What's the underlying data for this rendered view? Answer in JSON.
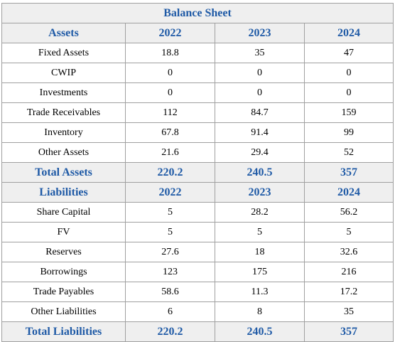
{
  "title": "Balance Sheet",
  "years": [
    "2022",
    "2023",
    "2024"
  ],
  "assets": {
    "header": "Assets",
    "rows": [
      {
        "label": "Fixed Assets",
        "values": [
          "18.8",
          "35",
          "47"
        ]
      },
      {
        "label": "CWIP",
        "values": [
          "0",
          "0",
          "0"
        ]
      },
      {
        "label": "Investments",
        "values": [
          "0",
          "0",
          "0"
        ]
      },
      {
        "label": "Trade Receivables",
        "values": [
          "112",
          "84.7",
          "159"
        ]
      },
      {
        "label": "Inventory",
        "values": [
          "67.8",
          "91.4",
          "99"
        ]
      },
      {
        "label": "Other Assets",
        "values": [
          "21.6",
          "29.4",
          "52"
        ]
      }
    ],
    "total": {
      "label": "Total Assets",
      "values": [
        "220.2",
        "240.5",
        "357"
      ]
    }
  },
  "liabilities": {
    "header": "Liabilities",
    "rows": [
      {
        "label": "Share Capital",
        "values": [
          "5",
          "28.2",
          "56.2"
        ]
      },
      {
        "label": "FV",
        "values": [
          "5",
          "5",
          "5"
        ]
      },
      {
        "label": "Reserves",
        "values": [
          "27.6",
          "18",
          "32.6"
        ]
      },
      {
        "label": "Borrowings",
        "values": [
          "123",
          "175",
          "216"
        ]
      },
      {
        "label": "Trade Payables",
        "values": [
          "58.6",
          "11.3",
          "17.2"
        ]
      },
      {
        "label": "Other Liabilities",
        "values": [
          "6",
          "8",
          "35"
        ]
      }
    ],
    "total": {
      "label": "Total Liabilities",
      "values": [
        "220.2",
        "240.5",
        "357"
      ]
    }
  },
  "colors": {
    "accent": "#1f5aa6",
    "header_bg": "#efefef",
    "border": "#a0a0a0"
  }
}
